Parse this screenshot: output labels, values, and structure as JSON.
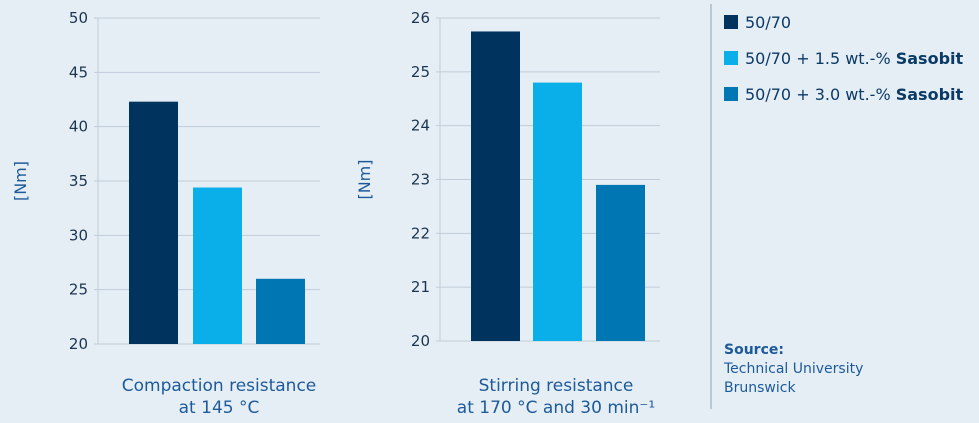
{
  "colors": {
    "dark": "#00345f",
    "light": "#0aaee8",
    "medium": "#0077b3",
    "grid": "#c0ccd8"
  },
  "legend": {
    "items": [
      {
        "base": "50/70",
        "bold": "",
        "color": "#00345f"
      },
      {
        "base": "50/70 + 1.5 wt.-% ",
        "bold": "Sasobit",
        "color": "#0aaee8"
      },
      {
        "base": "50/70 + 3.0 wt.-% ",
        "bold": "Sasobit",
        "color": "#0077b3"
      }
    ]
  },
  "source": {
    "label": "Source:",
    "line1": "Technical University",
    "line2": "Brunswick"
  },
  "chart_data": [
    {
      "type": "bar",
      "ylabel": "[Nm]",
      "caption_lines": [
        "Compaction resistance",
        "at 145 °C"
      ],
      "ylim": [
        20,
        50
      ],
      "yticks": [
        20,
        25,
        30,
        35,
        40,
        45,
        50
      ],
      "grid": true,
      "values": [
        42.3,
        34.4,
        26.0
      ],
      "colors": [
        "#00345f",
        "#0aaee8",
        "#0077b3"
      ]
    },
    {
      "type": "bar",
      "ylabel": "[Nm]",
      "caption_lines": [
        "Stirring resistance",
        "at 170 °C and 30 min⁻¹"
      ],
      "ylim": [
        20,
        26
      ],
      "yticks": [
        20,
        21,
        22,
        23,
        24,
        25,
        26
      ],
      "grid": true,
      "values": [
        25.75,
        24.8,
        22.9
      ],
      "colors": [
        "#00345f",
        "#0aaee8",
        "#0077b3"
      ]
    }
  ]
}
